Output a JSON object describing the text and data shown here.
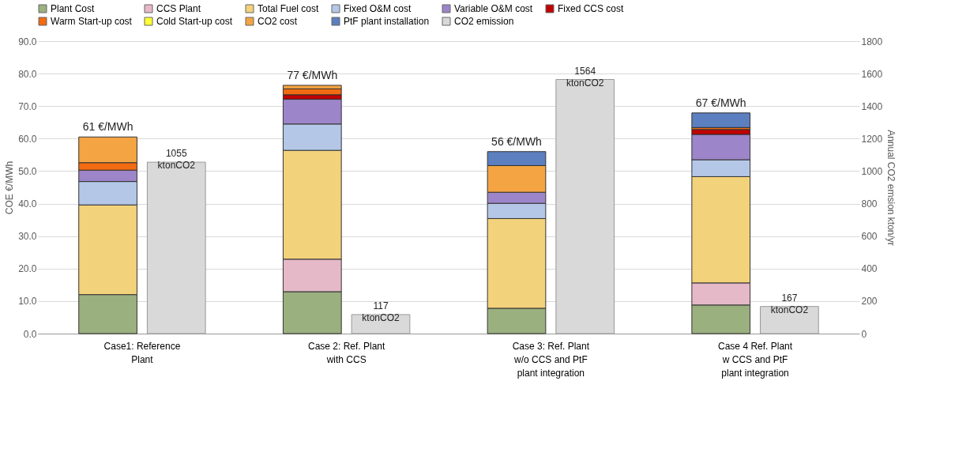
{
  "chart_data": {
    "type": "bar",
    "stacked": true,
    "categories": [
      "Case1: Reference Plant",
      "Case 2: Ref. Plant with CCS",
      "Case 3: Ref. Plant w/o CCS  and PtF plant integration",
      "Case 4 Ref. Plant w CCS  and PtF plant integration"
    ],
    "series": [
      {
        "name": "Plant Cost",
        "color": "#9bb07f",
        "values": [
          12.0,
          12.9,
          7.8,
          8.8
        ]
      },
      {
        "name": "CCS Plant",
        "color": "#e6b9c8",
        "values": [
          null,
          10.0,
          null,
          6.8
        ]
      },
      {
        "name": "Total Fuel cost",
        "color": "#f2d27a",
        "values": [
          27.6,
          33.5,
          27.6,
          32.7
        ]
      },
      {
        "name": "Fixed O&M cost",
        "color": "#b4c7e7",
        "values": [
          7.2,
          8.1,
          4.7,
          5.2
        ]
      },
      {
        "name": "Variable O&M cost",
        "color": "#9d85c9",
        "values": [
          3.5,
          7.6,
          3.4,
          7.8
        ]
      },
      {
        "name": "Fixed CCS cost",
        "color": "#c00000",
        "values": [
          null,
          1.4,
          null,
          1.5
        ]
      },
      {
        "name": "Warm Start-up cost",
        "color": "#f26b12",
        "values": [
          2.3,
          1.8,
          null,
          0.6
        ]
      },
      {
        "name": "Cold Start-up cost",
        "color": "#ffff33",
        "values": [
          null,
          null,
          null,
          null
        ]
      },
      {
        "name": "CO2 cost",
        "color": "#f4a442",
        "values": [
          7.9,
          1.1,
          8.2,
          null
        ]
      },
      {
        "name": "PtF plant installation",
        "color": "#5b7fbf",
        "values": [
          null,
          null,
          4.3,
          4.5
        ]
      },
      {
        "name": "CO2 emission",
        "color": "#d9d9d9",
        "axis": "y2",
        "values": [
          1055,
          117,
          1564,
          167
        ],
        "value_labels": [
          "1055 ktonCO2",
          "117 ktonCO2",
          "1564 ktonCO2",
          "167 ktonCO2"
        ]
      }
    ],
    "totals": [
      "61 €/MWh",
      "77 €/MWh",
      "56 €/MWh",
      "67 €/MWh"
    ],
    "ylabel": "COE €/MWh",
    "y2label": "Annual CO2 emsion kton/yr",
    "ylim": [
      0,
      90
    ],
    "yticks": [
      {
        "value": 0,
        "label": "0.0"
      },
      {
        "value": 10,
        "label": "10.0"
      },
      {
        "value": 20,
        "label": "20.0"
      },
      {
        "value": 30,
        "label": "30.0"
      },
      {
        "value": 40,
        "label": "40.0"
      },
      {
        "value": 50,
        "label": "50.0"
      },
      {
        "value": 60,
        "label": "60.0"
      },
      {
        "value": 70,
        "label": "70.0"
      },
      {
        "value": 80,
        "label": "80.0"
      },
      {
        "value": 90,
        "label": "90.0"
      }
    ],
    "y2lim": [
      0,
      1800
    ],
    "y2ticks": [
      0,
      200,
      400,
      600,
      800,
      1000,
      1200,
      1400,
      1600,
      1800
    ],
    "grid": "y",
    "legend": "top"
  }
}
